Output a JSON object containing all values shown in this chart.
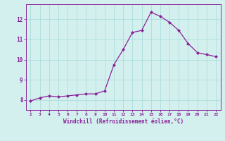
{
  "x": [
    2,
    3,
    4,
    5,
    6,
    7,
    8,
    9,
    10,
    11,
    12,
    13,
    14,
    15,
    16,
    17,
    18,
    19,
    20,
    21,
    22
  ],
  "y": [
    7.95,
    8.1,
    8.2,
    8.15,
    8.2,
    8.25,
    8.3,
    8.3,
    8.45,
    9.75,
    10.5,
    11.35,
    11.45,
    12.35,
    12.15,
    11.85,
    11.45,
    10.8,
    10.35,
    10.25,
    10.15
  ],
  "line_color": "#882299",
  "marker_color": "#882299",
  "bg_color": "#d4f0ee",
  "grid_color": "#aadddd",
  "axis_color": "#882299",
  "tick_color": "#882299",
  "xlabel": "Windchill (Refroidissement éolien,°C)",
  "xlabel_color": "#882299",
  "xlim": [
    1.5,
    22.5
  ],
  "ylim": [
    7.5,
    12.75
  ],
  "yticks": [
    8,
    9,
    10,
    11,
    12
  ],
  "xticks": [
    2,
    3,
    4,
    5,
    6,
    7,
    8,
    9,
    10,
    11,
    12,
    13,
    14,
    15,
    16,
    17,
    18,
    19,
    20,
    21,
    22
  ]
}
